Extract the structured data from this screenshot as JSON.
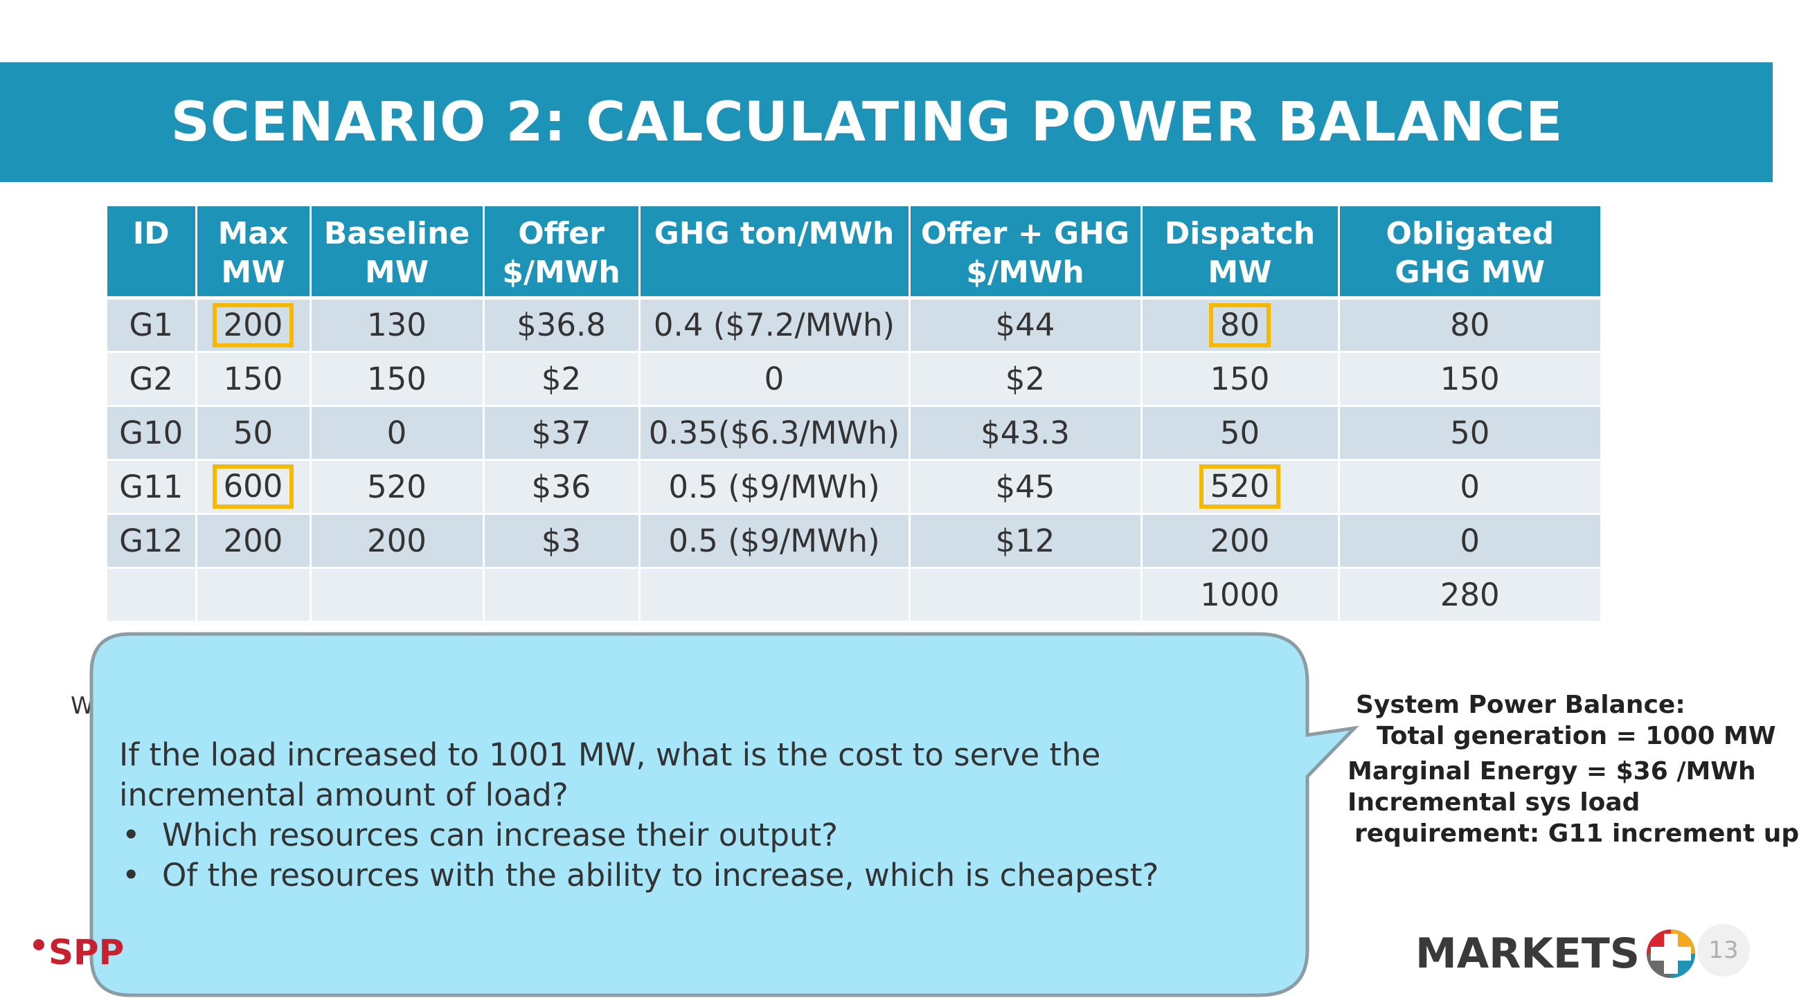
{
  "slide": {
    "title": "SCENARIO 2:  CALCULATING POWER BALANCE",
    "page_number": "13",
    "side_letter": "W",
    "spp_logo_text": "SPP",
    "markets_logo_text": "MARKETS",
    "highlight_color": "#f7b900",
    "brand_color": "#1e93b8"
  },
  "table": {
    "headers": [
      {
        "line1": "ID",
        "line2": ""
      },
      {
        "line1": "Max",
        "line2": "MW"
      },
      {
        "line1": "Baseline",
        "line2": "MW"
      },
      {
        "line1": "Offer",
        "line2": "$/MWh"
      },
      {
        "line1": "GHG ton/MWh",
        "line2": ""
      },
      {
        "line1": "Offer + GHG",
        "line2": "$/MWh"
      },
      {
        "line1": "Dispatch",
        "line2": "MW"
      },
      {
        "line1": "Obligated",
        "line2": "GHG MW"
      }
    ],
    "rows": [
      {
        "id": "G1",
        "max_mw": "200",
        "baseline": "130",
        "offer": "$36.8",
        "ghg": "0.4 ($7.2/MWh)",
        "offer_ghg": "$44",
        "dispatch": "80",
        "obligated": "80"
      },
      {
        "id": "G2",
        "max_mw": "150",
        "baseline": "150",
        "offer": "$2",
        "ghg": "0",
        "offer_ghg": "$2",
        "dispatch": "150",
        "obligated": "150"
      },
      {
        "id": "G10",
        "max_mw": "50",
        "baseline": "0",
        "offer": "$37",
        "ghg": "0.35($6.3/MWh)",
        "offer_ghg": "$43.3",
        "dispatch": "50",
        "obligated": "50"
      },
      {
        "id": "G11",
        "max_mw": "600",
        "baseline": "520",
        "offer": "$36",
        "ghg": "0.5 ($9/MWh)",
        "offer_ghg": "$45",
        "dispatch": "520",
        "obligated": "0"
      },
      {
        "id": "G12",
        "max_mw": "200",
        "baseline": "200",
        "offer": "$3",
        "ghg": "0.5 ($9/MWh)",
        "offer_ghg": "$12",
        "dispatch": "200",
        "obligated": "0"
      }
    ],
    "totals": {
      "dispatch": "1000",
      "obligated": "280"
    }
  },
  "callout": {
    "question": "If the load increased to 1001 MW, what is the cost to serve the incremental amount of load?",
    "bullets": [
      "Which resources can increase their output?",
      "Of the resources with the ability to increase, which is cheapest?"
    ]
  },
  "balance": {
    "line1": "System Power Balance:",
    "line2": "Total generation  =  1000 MW",
    "line3": "Marginal Energy  =  $36 /MWh",
    "line4": "Incremental sys load",
    "line5": "requirement: G11 increment up"
  }
}
